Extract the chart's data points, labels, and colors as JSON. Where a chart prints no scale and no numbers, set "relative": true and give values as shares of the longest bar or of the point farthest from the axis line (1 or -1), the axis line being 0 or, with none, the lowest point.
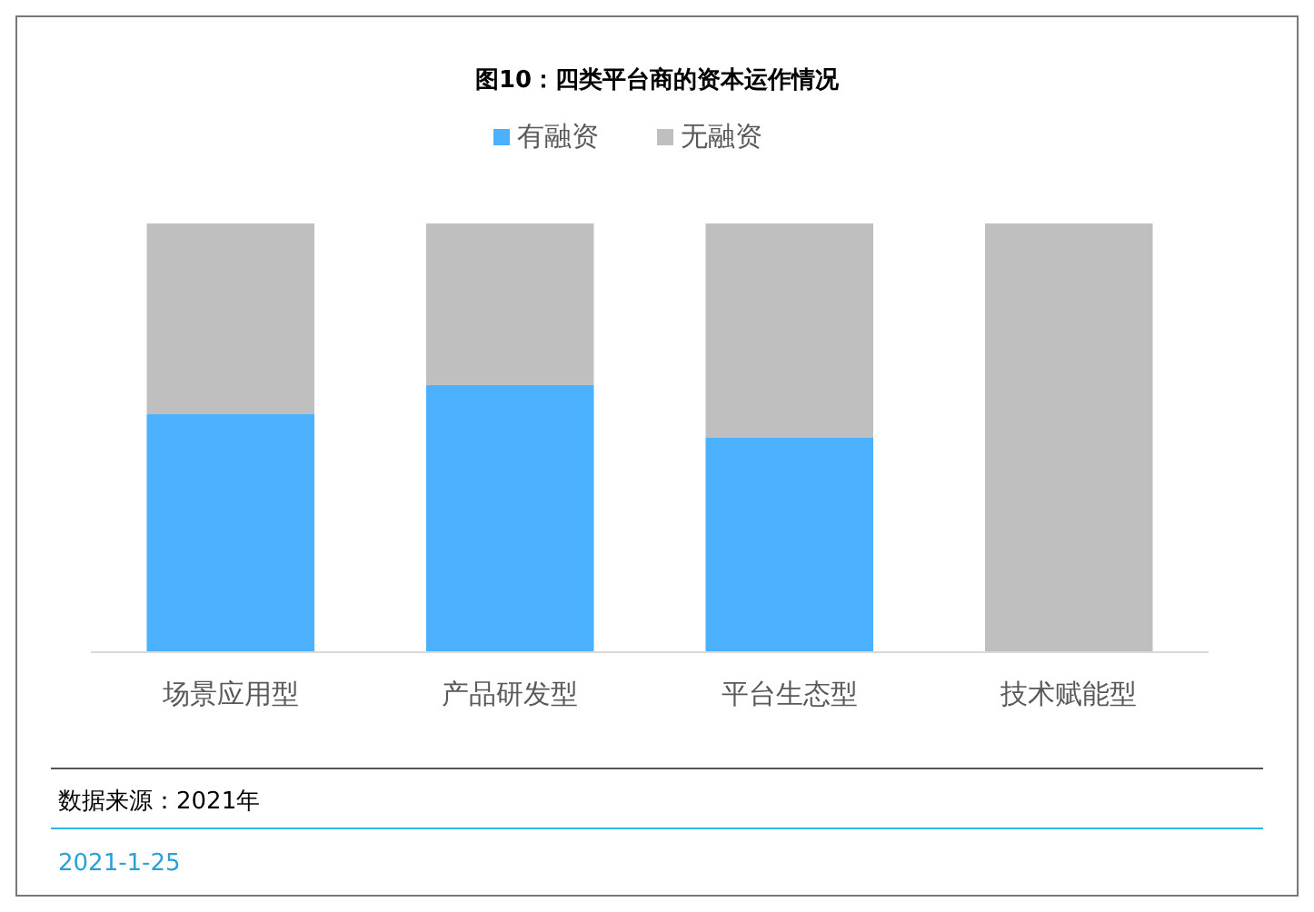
{
  "chart_data": {
    "type": "bar",
    "title": "图10：四类平台商的资本运作情况",
    "categories": [
      "场景应用型",
      "产品研发型",
      "平台生态型",
      "技术赋能型"
    ],
    "stacked": true,
    "relative": true,
    "legend": "top",
    "series": [
      {
        "name": "有融资",
        "color": "#4bb0fe",
        "values": [
          0.555,
          0.623,
          0.5,
          0
        ]
      },
      {
        "name": "无融资",
        "color": "#bfbfbf",
        "values": [
          0.445,
          0.377,
          0.5,
          1
        ]
      }
    ],
    "annotations": [
      "数据来源：2021年",
      "2021-1-25"
    ]
  }
}
